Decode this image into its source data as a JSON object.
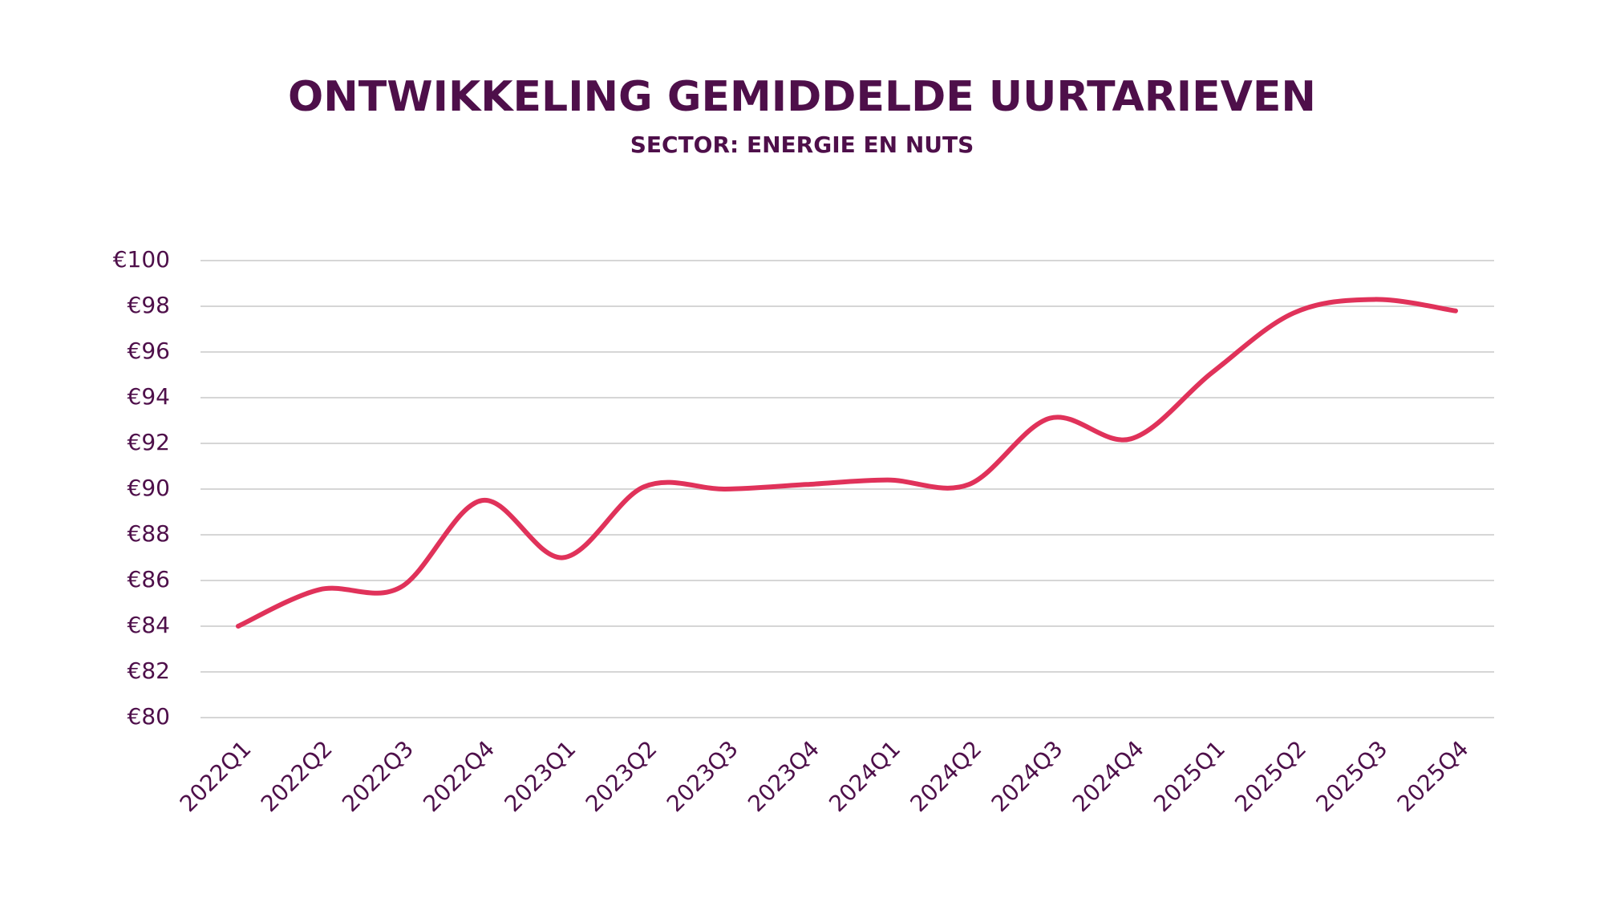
{
  "chart_data": {
    "type": "line",
    "title": "ONTWIKKELING GEMIDDELDE UURTARIEVEN",
    "subtitle": "SECTOR: ENERGIE EN NUTS",
    "categories": [
      "2022Q1",
      "2022Q2",
      "2022Q3",
      "2022Q4",
      "2023Q1",
      "2023Q2",
      "2023Q3",
      "2023Q4",
      "2024Q1",
      "2024Q2",
      "2024Q3",
      "2024Q4",
      "2025Q1",
      "2025Q2",
      "2025Q3",
      "2025Q4"
    ],
    "values": [
      84.0,
      85.6,
      85.7,
      89.5,
      87.0,
      90.1,
      90.0,
      90.2,
      90.4,
      90.2,
      93.1,
      92.2,
      95.1,
      97.7,
      98.3,
      97.8
    ],
    "color": "#e0325a",
    "ylim": [
      80,
      100
    ],
    "yticks": [
      {
        "value": 80,
        "label": "€80"
      },
      {
        "value": 82,
        "label": "€82"
      },
      {
        "value": 84,
        "label": "€84"
      },
      {
        "value": 86,
        "label": "€86"
      },
      {
        "value": 88,
        "label": "€88"
      },
      {
        "value": 90,
        "label": "€90"
      },
      {
        "value": 92,
        "label": "€92"
      },
      {
        "value": 94,
        "label": "€94"
      },
      {
        "value": 96,
        "label": "€96"
      },
      {
        "value": 98,
        "label": "€98"
      },
      {
        "value": 100,
        "label": "€100"
      }
    ],
    "grid": true
  }
}
